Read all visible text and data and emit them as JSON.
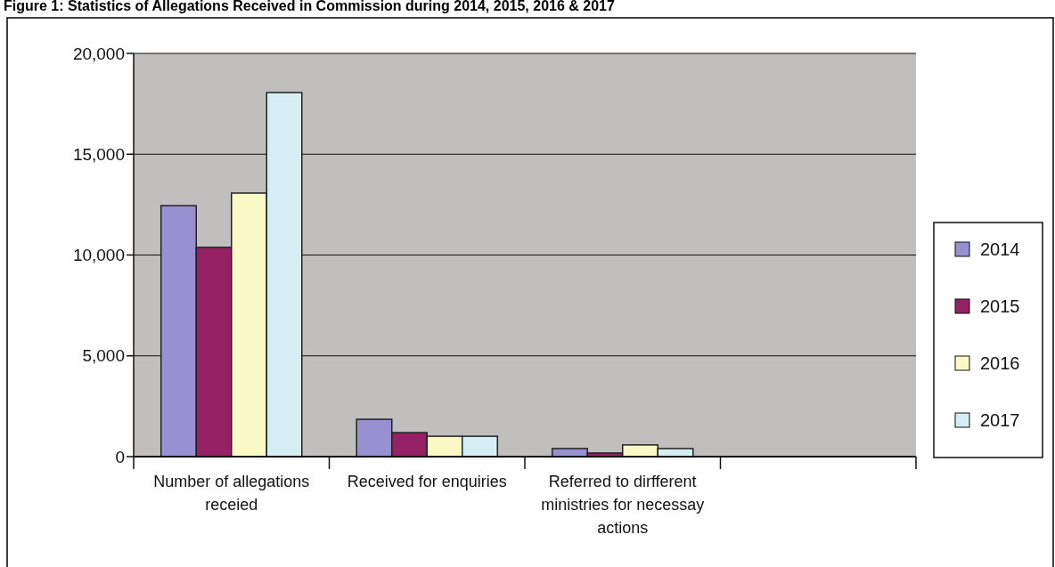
{
  "chart_data": {
    "type": "bar",
    "title": "Figure 1: Statistics of Allegations Received in Commission during 2014, 2015, 2016 & 2017",
    "categories": [
      "Number of allegations receied",
      "Received for enquiries",
      "Referred to dirfferent ministries for necessay actions",
      null
    ],
    "series": [
      {
        "name": "2014",
        "color": "#9890d0",
        "values": [
          12450,
          1850,
          400,
          null
        ]
      },
      {
        "name": "2015",
        "color": "#952064",
        "values": [
          10380,
          1190,
          180,
          null
        ]
      },
      {
        "name": "2016",
        "color": "#fbf9c5",
        "values": [
          13070,
          1010,
          580,
          null
        ]
      },
      {
        "name": "2017",
        "color": "#d5eef3",
        "values": [
          18060,
          1010,
          400,
          null
        ]
      }
    ],
    "ylim": [
      0,
      20000
    ],
    "yticks": [
      0,
      {
        "value": 5000,
        "label": "5,000"
      },
      {
        "value": 10000,
        "label": "10,000"
      },
      {
        "value": 15000,
        "label": "15,000"
      },
      {
        "value": 20000,
        "label": "20,000"
      }
    ],
    "grid": "y",
    "legend": "right"
  }
}
